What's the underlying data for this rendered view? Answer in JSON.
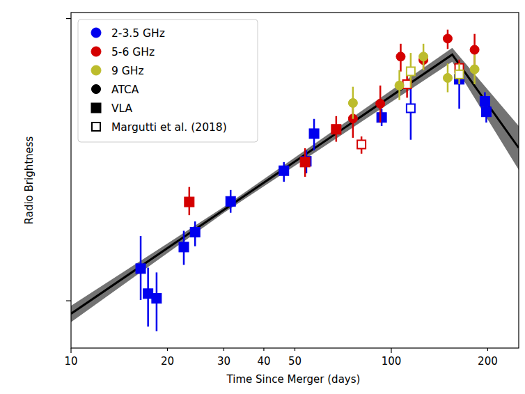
{
  "chart_data": {
    "type": "scatter",
    "x_label": "Time Since Merger (days)",
    "y_label": "Radio Brightness",
    "log": true,
    "grid": false,
    "legend": "upper left",
    "tick_labels": "x",
    "xlim": [
      10,
      250
    ],
    "ylim": [
      6.8,
      105
    ],
    "xticks": [
      10,
      20,
      30,
      40,
      50,
      100,
      200
    ],
    "yticks": [
      10,
      100
    ],
    "bands": [
      {
        "name": "2-3.5 GHz",
        "color": "#0000ee"
      },
      {
        "name": "5-6 GHz",
        "color": "#d40000"
      },
      {
        "name": "9 GHz",
        "color": "#bcbc2c"
      }
    ],
    "instruments": [
      {
        "name": "ATCA",
        "marker": "circle"
      },
      {
        "name": "VLA",
        "marker": "square"
      },
      {
        "name": "Margutti et al. (2018)",
        "marker": "open-square"
      }
    ],
    "series": [
      {
        "type": "line",
        "color": "#000000",
        "x": [
          10,
          30,
          155,
          250
        ],
        "values": [
          9.0,
          21.0,
          74.5,
          34.8
        ],
        "lower": [
          8.4,
          20.5,
          70.3,
          29.1
        ],
        "upper": [
          9.6,
          21.5,
          78.7,
          41.6
        ]
      },
      {
        "type": "scatter",
        "color": "#0000ee",
        "marker": "square",
        "x": [
          16.5,
          17.4,
          18.5,
          22.5,
          24.4,
          31.5,
          46.2,
          54.3,
          57.4,
          93.3,
          163,
          196,
          198
        ],
        "values": [
          13.0,
          10.6,
          10.2,
          15.5,
          17.5,
          22.5,
          28.9,
          31.2,
          39.1,
          44.6,
          60.9,
          50.9,
          46.7
        ],
        "lower": [
          10.06,
          8.1,
          7.8,
          13.4,
          15.6,
          20.5,
          26.4,
          28.3,
          34.1,
          41.6,
          47.9,
          47.3,
          42.8
        ],
        "upper": [
          16.97,
          13.1,
          12.6,
          17.7,
          19.1,
          24.7,
          31.0,
          34.1,
          44.1,
          47.9,
          69.3,
          54.8,
          49.4
        ]
      },
      {
        "type": "scatter",
        "color": "#d40000",
        "marker": "square",
        "x": [
          23.4,
          53.8,
          67.3
        ],
        "values": [
          22.4,
          31.0,
          40.5
        ],
        "lower": [
          20.1,
          27.5,
          36.6
        ],
        "upper": [
          25.3,
          34.7,
          45.1
        ]
      },
      {
        "type": "scatter",
        "color": "#0000ee",
        "marker": "open-square",
        "x": [
          115
        ],
        "values": [
          48.1
        ],
        "lower": [
          37.2
        ],
        "upper": [
          59.3
        ]
      },
      {
        "type": "scatter",
        "color": "#d40000",
        "marker": "open-square",
        "x": [
          80.7,
          112,
          163
        ],
        "values": [
          35.8,
          58.5,
          66.8
        ],
        "lower": [
          33.2,
          52.4,
          62.1
        ],
        "upper": [
          38.2,
          66.2,
          71.5
        ]
      },
      {
        "type": "scatter",
        "color": "#bcbc2c",
        "marker": "open-square",
        "x": [
          115,
          163
        ],
        "values": [
          65.0,
          63.4
        ],
        "lower": [
          56.9,
          58.5
        ],
        "upper": [
          75.5,
          69.3
        ]
      },
      {
        "type": "scatter",
        "color": "#d40000",
        "marker": "circle",
        "x": [
          75.9,
          92.4,
          107,
          126,
          150,
          182
        ],
        "values": [
          44.2,
          49.9,
          73.3,
          71.3,
          84.9,
          77.5
        ],
        "lower": [
          37.8,
          42.8,
          64.9,
          66.2,
          78.0,
          66.2
        ],
        "upper": [
          50.5,
          57.9,
          81.4,
          75.0,
          91.3,
          88.2
        ]
      },
      {
        "type": "scatter",
        "color": "#bcbc2c",
        "marker": "circle",
        "x": [
          75.9,
          106,
          126,
          150,
          182
        ],
        "values": [
          50.2,
          57.9,
          73.3,
          61.6,
          66.1
        ],
        "lower": [
          44.1,
          51.4,
          65.6,
          54.8,
          58.5
        ],
        "upper": [
          57.3,
          65.6,
          81.4,
          69.3,
          74.5
        ]
      }
    ]
  }
}
